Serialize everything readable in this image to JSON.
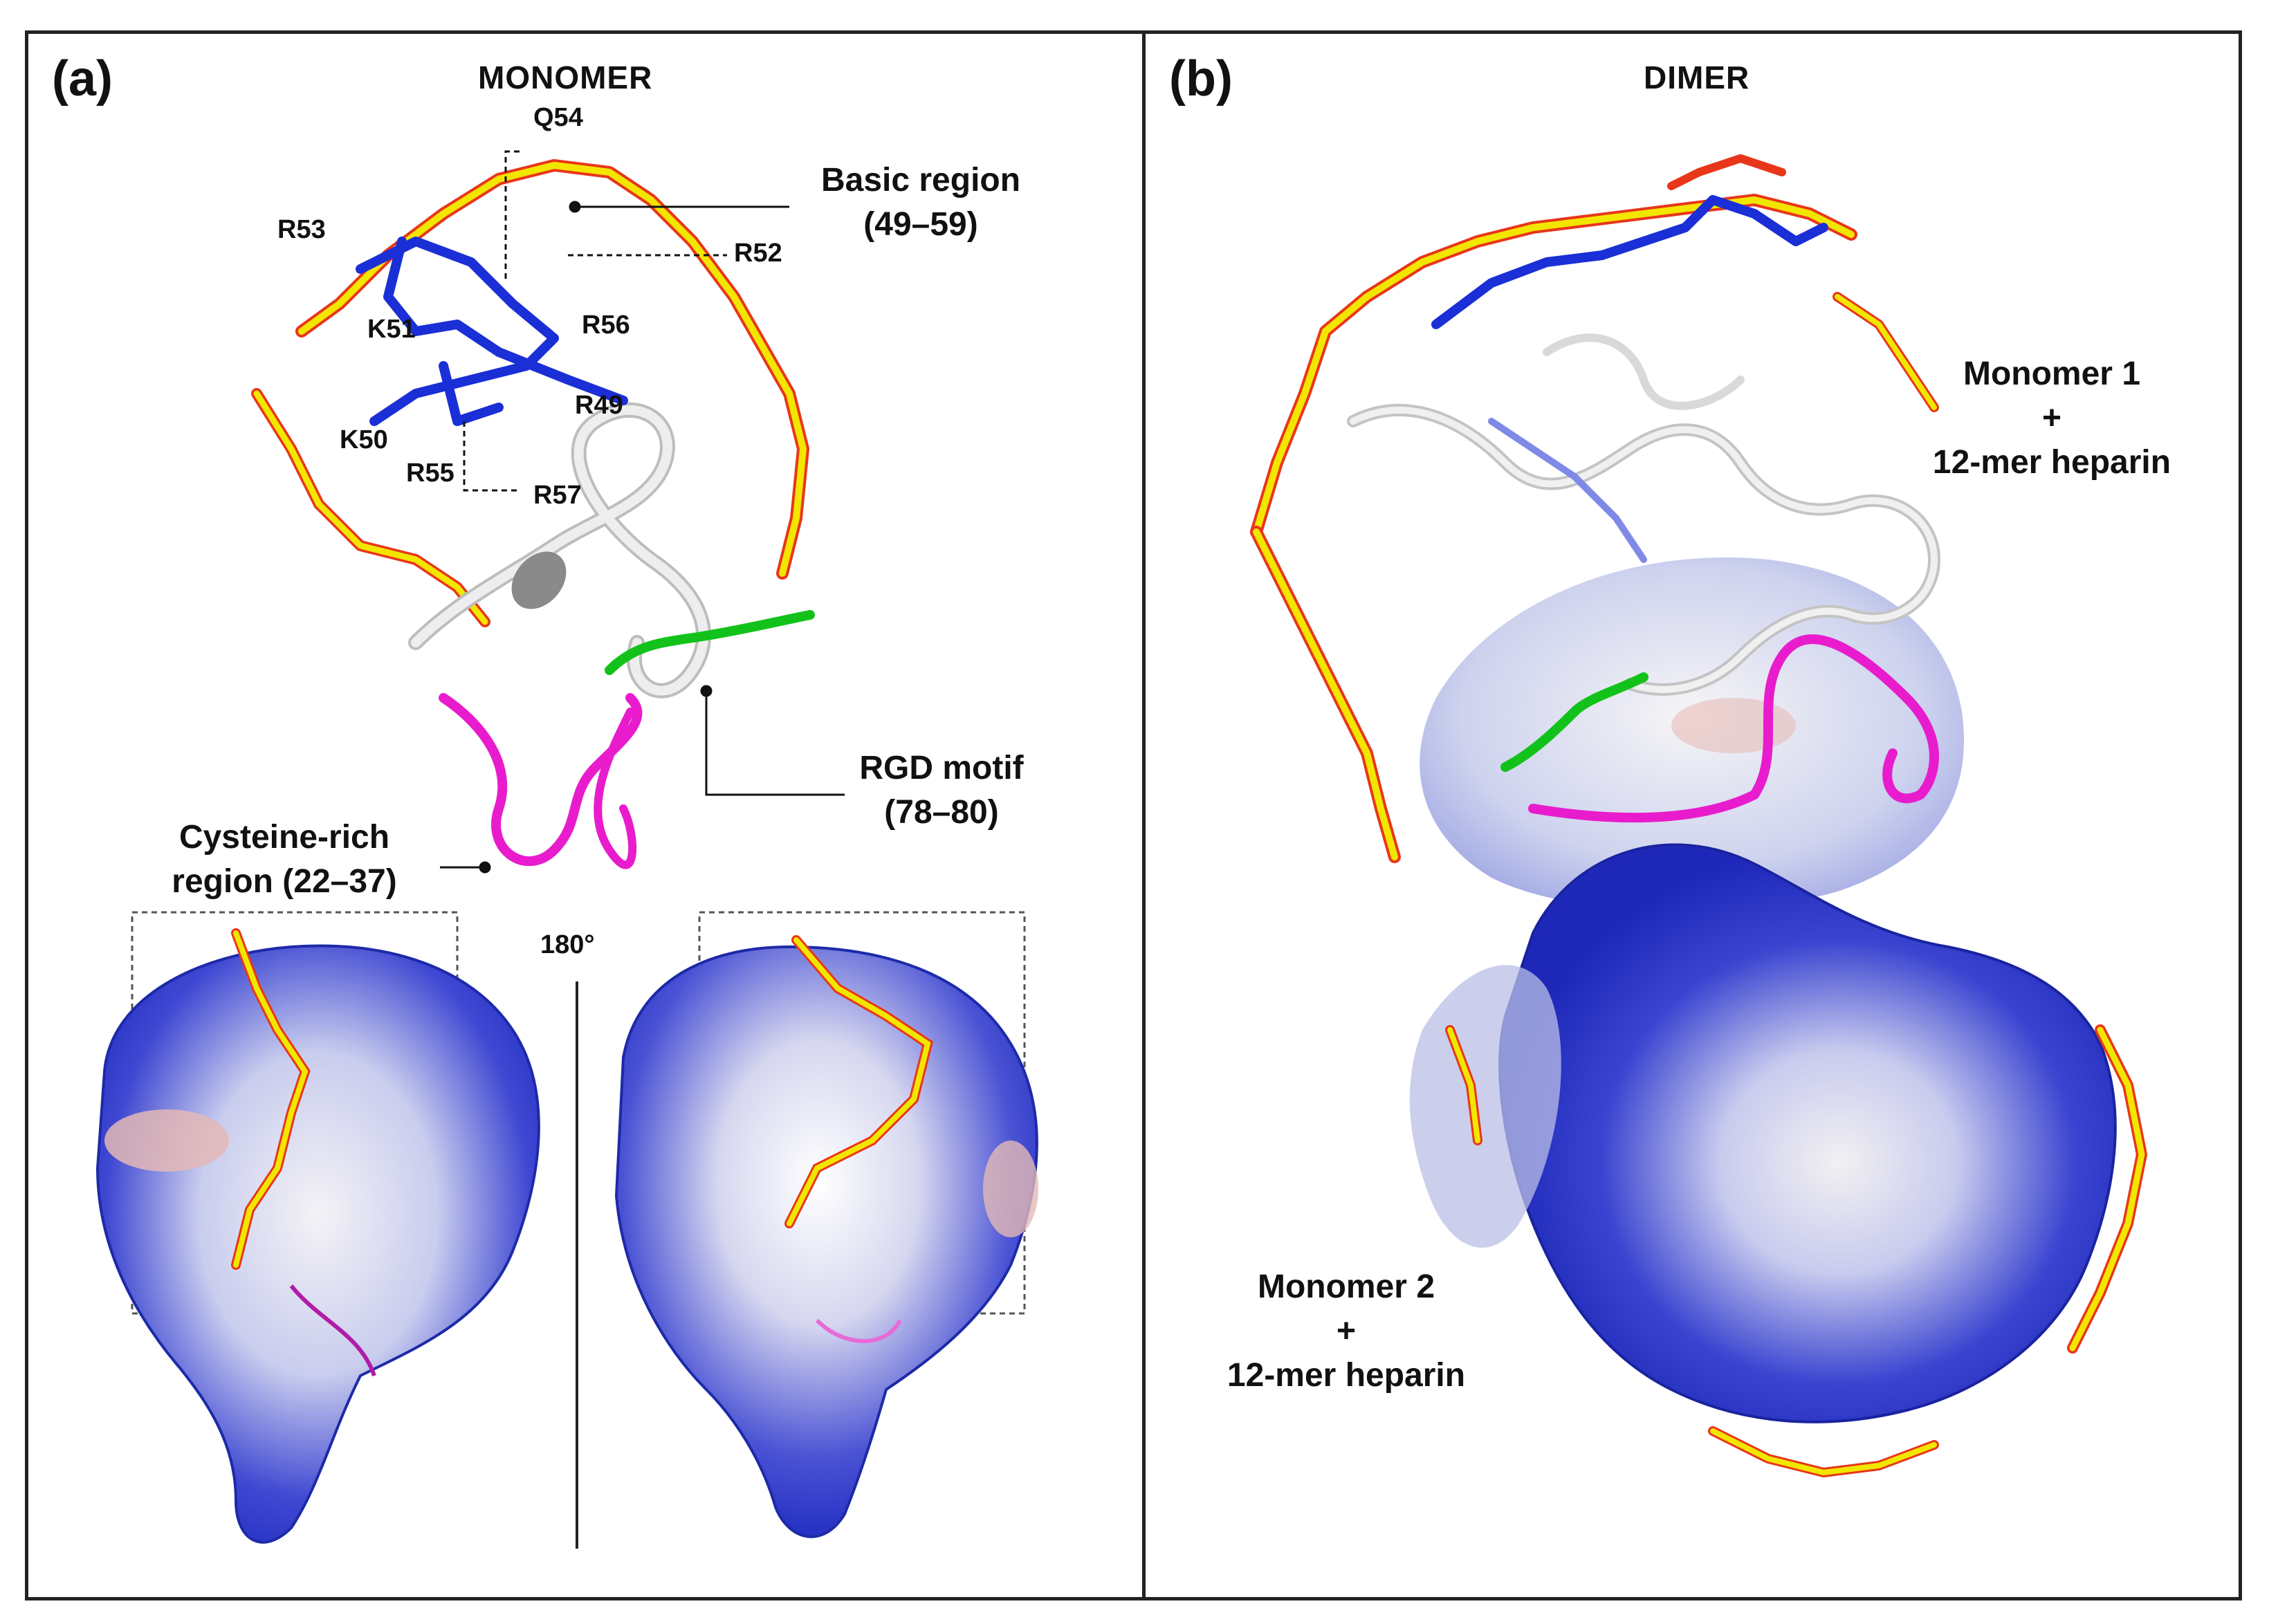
{
  "panel_a": {
    "letter": "(a)",
    "heading": "MONOMER",
    "residues": {
      "q54": "Q54",
      "r53": "R53",
      "r52": "R52",
      "k51": "K51",
      "r56": "R56",
      "r49": "R49",
      "k50": "K50",
      "r55": "R55",
      "r57": "R57"
    },
    "basic_region": {
      "line1": "Basic region",
      "line2": "(49–59)"
    },
    "rgd_motif": {
      "line1": "RGD motif",
      "line2": "(78–80)"
    },
    "cysteine_region": {
      "line1": "Cysteine-rich",
      "line2": "region (22–37)"
    },
    "rotation": "180°"
  },
  "panel_b": {
    "letter": "(b)",
    "heading": "DIMER",
    "monomer1": {
      "line1": "Monomer 1",
      "line2": "+",
      "line3": "12-mer heparin"
    },
    "monomer2": {
      "line1": "Monomer 2",
      "line2": "+",
      "line3": "12-mer heparin"
    }
  },
  "colors": {
    "basic_region": "#1a2fd6",
    "heparin_carbon": "#f2e600",
    "heparin_oxygen": "#e8361a",
    "rgd_motif": "#12c21a",
    "cysteine_region": "#e81ccd",
    "backbone": "#d8d8d8",
    "surface_positive": "#2a36c8",
    "surface_negative": "#e8b4b0"
  }
}
